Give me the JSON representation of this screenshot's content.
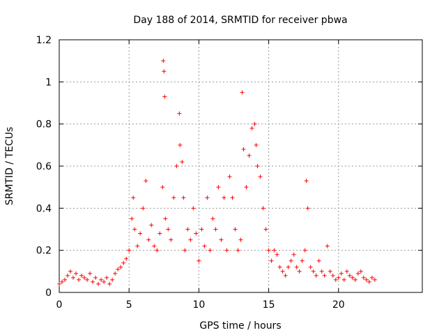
{
  "chart_data": {
    "type": "scatter",
    "title": "Day 188 of 2014, SRMTID for receiver pbwa",
    "xlabel": "GPS time / hours",
    "ylabel": "SRMTID / TECUs",
    "xlim": [
      0,
      26
    ],
    "ylim": [
      0,
      1.2
    ],
    "grid": true,
    "marker": "+",
    "color": "#ff0000",
    "xticks": [
      0,
      5,
      10,
      15,
      20
    ],
    "xtick_labels": [
      "0",
      "5",
      "10",
      "15",
      "20"
    ],
    "yticks": [
      0,
      0.2,
      0.4,
      0.6,
      0.8,
      1.0,
      1.2
    ],
    "ytick_labels": [
      "0",
      "0.2",
      "0.4",
      "0.6",
      "0.8",
      "1",
      "1.2"
    ],
    "series": [
      {
        "name": "SRMTID",
        "x": [
          0.0,
          0.2,
          0.4,
          0.6,
          0.8,
          1.0,
          1.2,
          1.4,
          1.6,
          1.8,
          2.0,
          2.2,
          2.4,
          2.6,
          2.8,
          3.0,
          3.2,
          3.4,
          3.6,
          3.8,
          4.0,
          4.2,
          4.4,
          4.6,
          4.8,
          5.0,
          5.2,
          5.3,
          5.4,
          5.6,
          5.8,
          6.0,
          6.2,
          6.4,
          6.6,
          6.8,
          7.0,
          7.2,
          7.4,
          7.45,
          7.5,
          7.55,
          7.6,
          7.8,
          8.0,
          8.2,
          8.4,
          8.6,
          8.65,
          8.8,
          8.9,
          9.0,
          9.2,
          9.4,
          9.6,
          9.8,
          10.0,
          10.2,
          10.4,
          10.6,
          10.8,
          11.0,
          11.2,
          11.4,
          11.6,
          11.8,
          12.0,
          12.2,
          12.4,
          12.6,
          12.8,
          13.0,
          13.1,
          13.2,
          13.4,
          13.6,
          13.8,
          14.0,
          14.1,
          14.2,
          14.4,
          14.6,
          14.8,
          15.0,
          15.2,
          15.4,
          15.6,
          15.8,
          16.0,
          16.2,
          16.4,
          16.6,
          16.8,
          17.0,
          17.2,
          17.4,
          17.6,
          17.7,
          17.8,
          18.0,
          18.2,
          18.4,
          18.6,
          18.8,
          19.0,
          19.2,
          19.4,
          19.6,
          19.8,
          20.0,
          20.2,
          20.4,
          20.6,
          20.8,
          21.0,
          21.2,
          21.4,
          21.6,
          21.8,
          22.0,
          22.2,
          22.4,
          22.6
        ],
        "y": [
          0.04,
          0.05,
          0.06,
          0.08,
          0.1,
          0.07,
          0.09,
          0.06,
          0.08,
          0.07,
          0.06,
          0.09,
          0.05,
          0.07,
          0.04,
          0.06,
          0.05,
          0.07,
          0.04,
          0.06,
          0.09,
          0.11,
          0.12,
          0.14,
          0.16,
          0.2,
          0.35,
          0.45,
          0.3,
          0.22,
          0.28,
          0.4,
          0.53,
          0.25,
          0.32,
          0.22,
          0.2,
          0.28,
          0.5,
          1.1,
          1.05,
          0.93,
          0.35,
          0.3,
          0.25,
          0.45,
          0.6,
          0.85,
          0.7,
          0.62,
          0.45,
          0.2,
          0.3,
          0.25,
          0.4,
          0.28,
          0.15,
          0.3,
          0.22,
          0.45,
          0.2,
          0.35,
          0.3,
          0.5,
          0.25,
          0.45,
          0.2,
          0.55,
          0.45,
          0.3,
          0.2,
          0.25,
          0.95,
          0.68,
          0.5,
          0.65,
          0.78,
          0.8,
          0.7,
          0.6,
          0.55,
          0.4,
          0.3,
          0.2,
          0.15,
          0.2,
          0.18,
          0.12,
          0.1,
          0.08,
          0.12,
          0.15,
          0.18,
          0.12,
          0.1,
          0.15,
          0.2,
          0.53,
          0.4,
          0.12,
          0.1,
          0.08,
          0.15,
          0.1,
          0.08,
          0.22,
          0.1,
          0.08,
          0.06,
          0.07,
          0.09,
          0.06,
          0.1,
          0.08,
          0.07,
          0.06,
          0.09,
          0.1,
          0.07,
          0.06,
          0.05,
          0.07,
          0.06
        ]
      }
    ]
  }
}
